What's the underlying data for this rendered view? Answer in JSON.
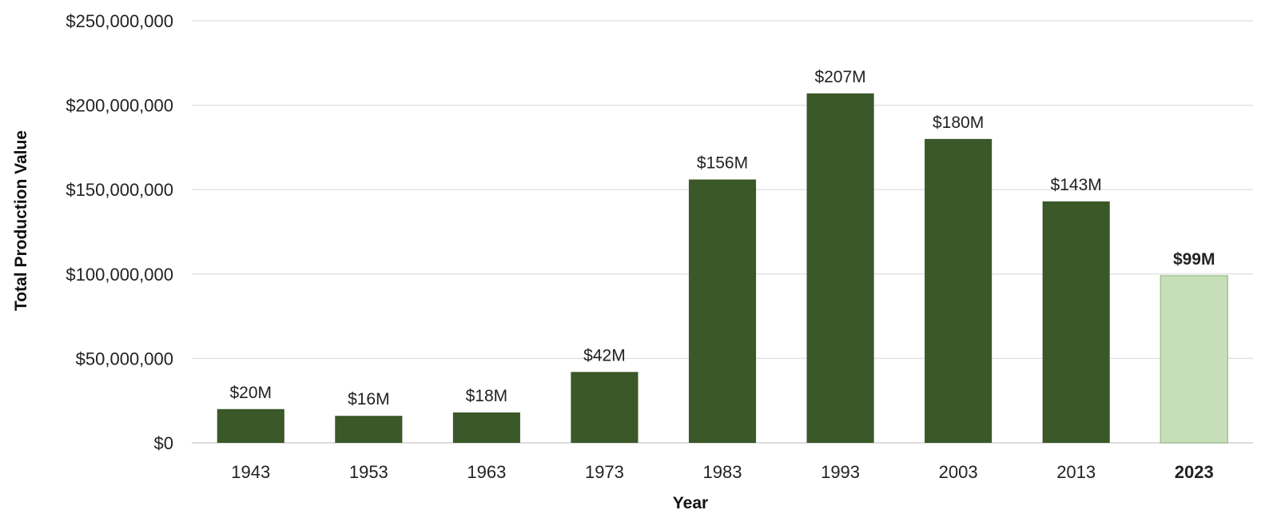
{
  "chart_data": {
    "type": "bar",
    "xlabel": "Year",
    "ylabel": "Total Production Value",
    "ylim": [
      0,
      250000000
    ],
    "yticks": [
      {
        "value": 0,
        "label": "$0"
      },
      {
        "value": 50000000,
        "label": "$50,000,000"
      },
      {
        "value": 100000000,
        "label": "$100,000,000"
      },
      {
        "value": 150000000,
        "label": "$150,000,000"
      },
      {
        "value": 200000000,
        "label": "$200,000,000"
      },
      {
        "value": 250000000,
        "label": "$250,000,000"
      }
    ],
    "categories": [
      "1943",
      "1953",
      "1963",
      "1973",
      "1983",
      "1993",
      "2003",
      "2013",
      "2023"
    ],
    "values": [
      20000000,
      16000000,
      18000000,
      42000000,
      156000000,
      207000000,
      180000000,
      143000000,
      99000000
    ],
    "data_labels": [
      "$20M",
      "$16M",
      "$18M",
      "$42M",
      "$156M",
      "$207M",
      "$180M",
      "$143M",
      "$99M"
    ],
    "highlight_category": "2023",
    "grid": true,
    "legend": "none",
    "colors": {
      "bar": "#3a5828",
      "highlight_bar": "#c6dfb9",
      "highlight_stroke": "#9ab98a"
    }
  }
}
